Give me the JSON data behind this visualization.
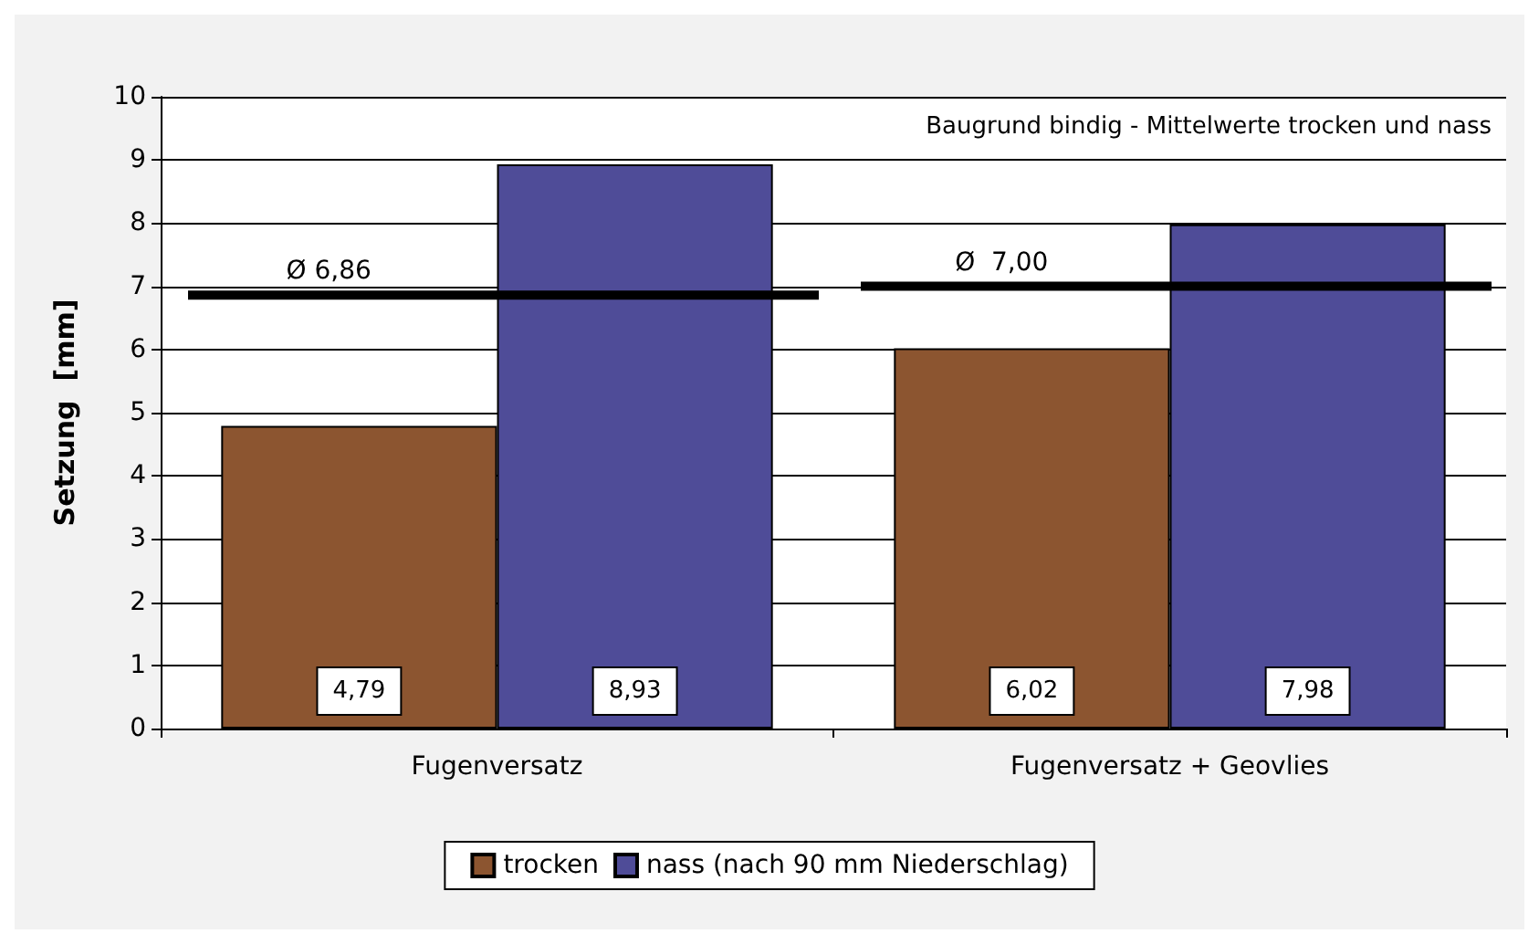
{
  "chart_data": {
    "type": "bar",
    "ylabel": "Setzung  [mm]",
    "categories": [
      "Fugenversatz",
      "Fugenversatz + Geovlies"
    ],
    "series": [
      {
        "name": "trocken",
        "color": "#8c5530",
        "values": [
          4.79,
          6.02
        ],
        "value_labels": [
          "4,79",
          "6,02"
        ]
      },
      {
        "name": "nass (nach 90 mm Niederschlag)",
        "color": "#4f4c98",
        "values": [
          8.93,
          7.98
        ],
        "value_labels": [
          "8,93",
          "7,98"
        ]
      }
    ],
    "ylim": [
      0,
      10
    ],
    "yticks": [
      0,
      1,
      2,
      3,
      4,
      5,
      6,
      7,
      8,
      9,
      10
    ],
    "grid": "y",
    "legend": "bottom",
    "ref_lines": [
      {
        "axis": "y",
        "value": 6.86,
        "label": "Ø 6,86",
        "color": "#000000"
      },
      {
        "axis": "y",
        "value": 7.0,
        "label": "Ø  7,00",
        "color": "#000000"
      }
    ],
    "annotations": [
      "Baugrund bindig - Mittelwerte trocken und nass"
    ]
  }
}
